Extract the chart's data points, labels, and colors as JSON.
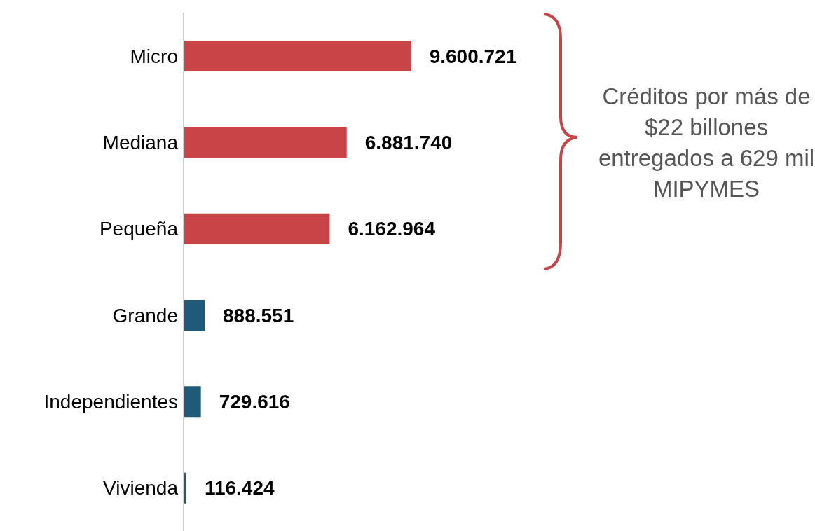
{
  "chart_data": {
    "type": "bar",
    "orientation": "horizontal",
    "categories": [
      "Micro",
      "Mediana",
      "Pequeña",
      "Grande",
      "Independientes",
      "Vivienda"
    ],
    "values": [
      9600721,
      6881740,
      6162964,
      888551,
      729616,
      116424
    ],
    "value_labels": [
      "9.600.721",
      "6.881.740",
      "6.162.964",
      "888.551",
      "729.616",
      "116.424"
    ],
    "colors": [
      "#c84446",
      "#c84446",
      "#c84446",
      "#1f5a78",
      "#1f5a78",
      "#1f5a78"
    ],
    "annotations": [
      "Créditos por más de $22 billones entregados a 629 mil MIPYMES"
    ]
  }
}
